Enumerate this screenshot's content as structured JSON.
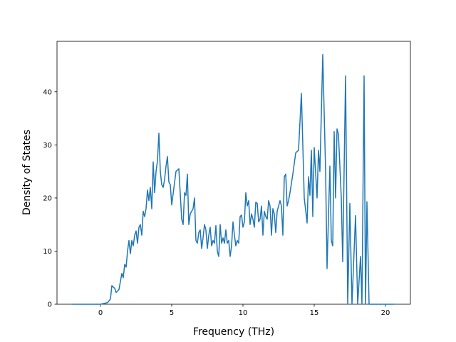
{
  "chart_data": {
    "type": "line",
    "x_label": "Frequency (THz)",
    "y_label": "Density of States",
    "series": [
      {
        "name": "DOS",
        "color": "#1f77b4",
        "x": [
          -2,
          -1,
          0,
          0.5,
          0.7,
          0.8,
          1.0,
          1.1,
          1.3,
          1.5,
          1.6,
          1.7,
          1.8,
          1.9,
          2.0,
          2.1,
          2.2,
          2.3,
          2.4,
          2.5,
          2.6,
          2.7,
          2.8,
          2.9,
          3.0,
          3.1,
          3.2,
          3.3,
          3.4,
          3.5,
          3.6,
          3.7,
          3.8,
          3.9,
          4.0,
          4.1,
          4.2,
          4.3,
          4.4,
          4.5,
          4.6,
          4.7,
          4.8,
          4.9,
          5.0,
          5.3,
          5.5,
          5.7,
          5.8,
          5.9,
          6.0,
          6.1,
          6.2,
          6.3,
          6.5,
          6.6,
          6.7,
          6.8,
          6.9,
          7.0,
          7.1,
          7.2,
          7.3,
          7.4,
          7.5,
          7.6,
          7.7,
          7.8,
          7.9,
          8.0,
          8.1,
          8.2,
          8.3,
          8.4,
          8.5,
          8.6,
          8.7,
          8.8,
          8.9,
          9.0,
          9.1,
          9.2,
          9.3,
          9.4,
          9.5,
          9.6,
          9.7,
          9.8,
          9.9,
          10.0,
          10.1,
          10.2,
          10.3,
          10.4,
          10.5,
          10.6,
          10.7,
          10.8,
          10.9,
          11.0,
          11.1,
          11.2,
          11.3,
          11.4,
          11.5,
          11.6,
          11.7,
          11.8,
          11.9,
          12.0,
          12.1,
          12.2,
          12.3,
          12.4,
          12.6,
          12.7,
          12.8,
          12.9,
          13.0,
          13.1,
          13.2,
          13.3,
          13.5,
          13.7,
          13.9,
          14.1,
          14.2,
          14.3,
          14.5,
          14.6,
          14.7,
          14.8,
          14.9,
          15.0,
          15.2,
          15.3,
          15.4,
          15.6,
          15.8,
          15.9,
          16.1,
          16.2,
          16.3,
          16.4,
          16.5,
          16.6,
          16.7,
          16.9,
          17.0,
          17.2,
          17.35,
          17.5,
          17.65,
          17.9,
          18.05,
          18.25,
          18.35,
          18.5,
          18.6,
          18.7,
          18.85,
          20.6
        ],
        "values": [
          0,
          0,
          0,
          0.3,
          1,
          3.5,
          3,
          2.2,
          2.8,
          5.8,
          5,
          7.5,
          7,
          10,
          12,
          9.5,
          12,
          11,
          13,
          13.8,
          11.5,
          14.5,
          15,
          13,
          17.5,
          16.5,
          18,
          21.5,
          19.5,
          22,
          18,
          26.8,
          21,
          25,
          27,
          32.2,
          25,
          22.5,
          22,
          23.5,
          26,
          27.8,
          23,
          22.5,
          18.7,
          25,
          25.5,
          16,
          15,
          21,
          20.5,
          24.5,
          15,
          17,
          18,
          20,
          12,
          11.5,
          13.5,
          14,
          10.5,
          12.5,
          15,
          14,
          10.5,
          13,
          14.5,
          11,
          12,
          11.5,
          14.8,
          10,
          9,
          15,
          11.5,
          12.5,
          11.5,
          14,
          11.5,
          12,
          9,
          11,
          15.5,
          13,
          11,
          12,
          11.5,
          16.5,
          16.8,
          14.5,
          15.5,
          21,
          18.5,
          19.5,
          15,
          17,
          16,
          14.5,
          19.2,
          19,
          15.5,
          16,
          18.5,
          13,
          17.5,
          16.5,
          16,
          19.5,
          18.5,
          13,
          18,
          17,
          13.5,
          17.5,
          19.5,
          18.5,
          13,
          24,
          24.5,
          18.5,
          19.5,
          21,
          24.5,
          28.5,
          29,
          39.7,
          30,
          20,
          15.3,
          24,
          20.5,
          29,
          16.5,
          29.5,
          20,
          29,
          25,
          47,
          25,
          6.7,
          26,
          12,
          11,
          32.5,
          20,
          33,
          32,
          20,
          8,
          43,
          0,
          19,
          0,
          16.7,
          0,
          9,
          0,
          43,
          0,
          19.3,
          0,
          0
        ]
      }
    ],
    "xlim": [
      -3.05,
      21.75
    ],
    "ylim": [
      0,
      49.5
    ],
    "xticks": [
      0,
      5,
      10,
      15,
      20
    ],
    "yticks": [
      0,
      10,
      20,
      30,
      40
    ]
  }
}
